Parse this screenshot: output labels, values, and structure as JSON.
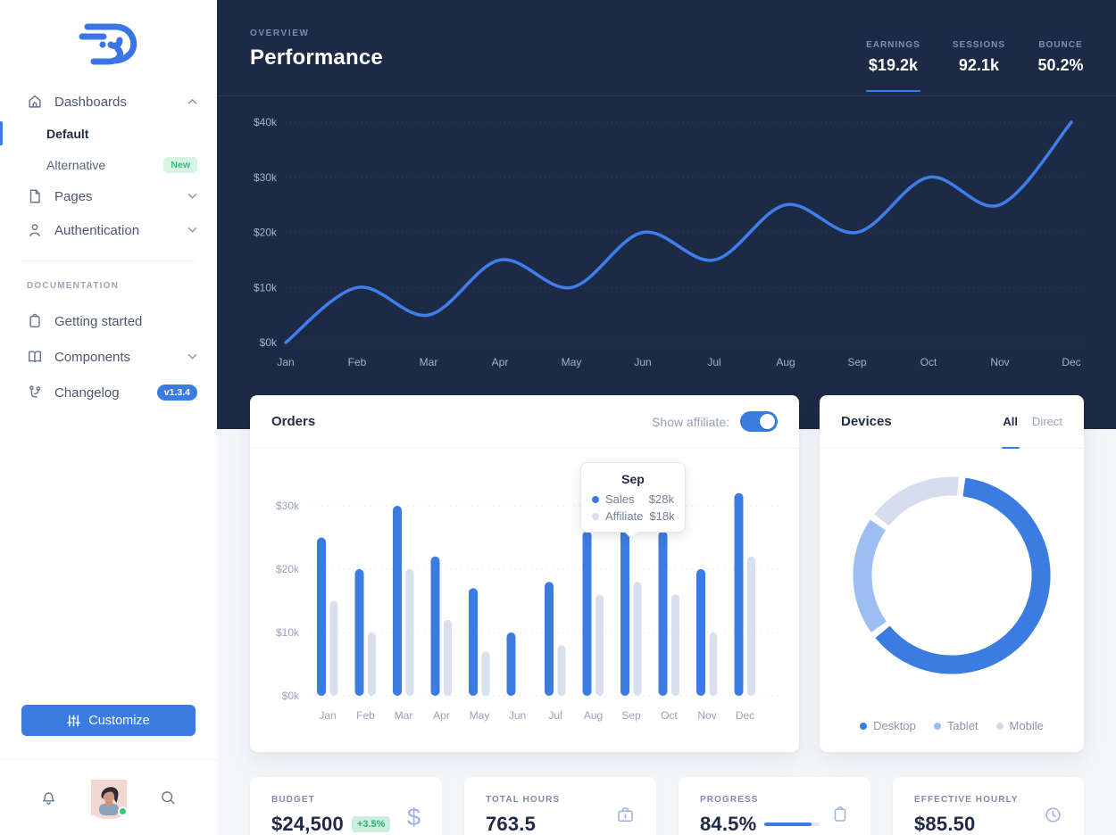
{
  "theme": {
    "primary_blue": "#3b7ce2",
    "dark_navy": "#1d2a45",
    "success_green": "#2fae72",
    "page_background": "#f4f6fa"
  },
  "sidebar": {
    "items": [
      {
        "label": "Dashboards",
        "icon": "home-icon",
        "state": "expanded",
        "children": [
          {
            "label": "Default",
            "active": true
          },
          {
            "label": "Alternative",
            "badge": "New"
          }
        ]
      },
      {
        "label": "Pages",
        "icon": "file-icon",
        "state": "collapsed"
      },
      {
        "label": "Authentication",
        "icon": "user-icon",
        "state": "collapsed"
      }
    ],
    "section_label": "DOCUMENTATION",
    "docs": [
      {
        "label": "Getting started",
        "icon": "clipboard-icon"
      },
      {
        "label": "Components",
        "icon": "book-icon",
        "state": "collapsed"
      },
      {
        "label": "Changelog",
        "icon": "git-branch-icon",
        "badge": "v1.3.4"
      }
    ],
    "customize_label": "Customize"
  },
  "header": {
    "kicker": "OVERVIEW",
    "title": "Performance",
    "stats": [
      {
        "label": "EARNINGS",
        "value": "$19.2k",
        "active": true
      },
      {
        "label": "SESSIONS",
        "value": "92.1k",
        "active": false
      },
      {
        "label": "BOUNCE",
        "value": "50.2%",
        "active": false
      }
    ]
  },
  "orders": {
    "title": "Orders",
    "toggle_label": "Show affiliate:",
    "toggle_on": true,
    "tooltip": {
      "title": "Sep",
      "rows": [
        {
          "label": "Sales",
          "value": "$28k"
        },
        {
          "label": "Affiliate",
          "value": "$18k"
        }
      ]
    }
  },
  "devices": {
    "title": "Devices",
    "tabs": [
      {
        "label": "All",
        "active": true
      },
      {
        "label": "Direct",
        "active": false
      }
    ]
  },
  "kpis": [
    {
      "label": "BUDGET",
      "value": "$24,500",
      "badge": "+3.5%",
      "icon": "dollar-icon"
    },
    {
      "label": "TOTAL HOURS",
      "value": "763.5",
      "icon": "briefcase-icon"
    },
    {
      "label": "PROGRESS",
      "value": "84.5%",
      "progress_percent": 84.5,
      "icon": "clipboard-icon"
    },
    {
      "label": "EFFECTIVE HOURLY",
      "value": "$85.50",
      "icon": "clock-icon"
    }
  ],
  "chart_data": [
    {
      "id": "performance-line",
      "type": "line",
      "title": "Performance (Earnings)",
      "x": [
        "Jan",
        "Feb",
        "Mar",
        "Apr",
        "May",
        "Jun",
        "Jul",
        "Aug",
        "Sep",
        "Oct",
        "Nov",
        "Dec"
      ],
      "series": [
        {
          "name": "Earnings",
          "color": "#3f7fec",
          "values": [
            0,
            10,
            5,
            15,
            10,
            20,
            15,
            25,
            20,
            30,
            25,
            40
          ]
        }
      ],
      "ylim": [
        0,
        40
      ],
      "y_ticks": [
        0,
        10,
        20,
        30,
        40
      ],
      "y_tick_labels": [
        "$0k",
        "$10k",
        "$20k",
        "$30k",
        "$40k"
      ],
      "grid": "dotted-horizontal",
      "background": "dark"
    },
    {
      "id": "orders-bars",
      "type": "bar",
      "title": "Orders",
      "categories": [
        "Jan",
        "Feb",
        "Mar",
        "Apr",
        "May",
        "Jun",
        "Jul",
        "Aug",
        "Sep",
        "Oct",
        "Nov",
        "Dec"
      ],
      "series": [
        {
          "name": "Sales",
          "color": "#3b7ce2",
          "values": [
            25,
            20,
            30,
            22,
            17,
            10,
            18,
            26,
            28,
            26,
            20,
            32
          ]
        },
        {
          "name": "Affiliate",
          "color": "#d9e0ed",
          "values": [
            15,
            10,
            20,
            12,
            7,
            0,
            8,
            16,
            18,
            16,
            10,
            22
          ]
        }
      ],
      "ylim": [
        0,
        30
      ],
      "y_ticks": [
        0,
        10,
        20,
        30
      ],
      "y_tick_labels": [
        "$0k",
        "$10k",
        "$20k",
        "$30k"
      ],
      "grid": "dotted-horizontal",
      "highlighted_category": "Sep"
    },
    {
      "id": "devices-donut",
      "type": "pie",
      "title": "Devices",
      "labels": [
        "Desktop",
        "Tablet",
        "Mobile"
      ],
      "values": [
        64,
        20,
        16
      ],
      "colors": [
        "#3b7ce2",
        "#9dbef3",
        "#d5dded"
      ],
      "donut": true,
      "legend_position": "bottom"
    }
  ]
}
